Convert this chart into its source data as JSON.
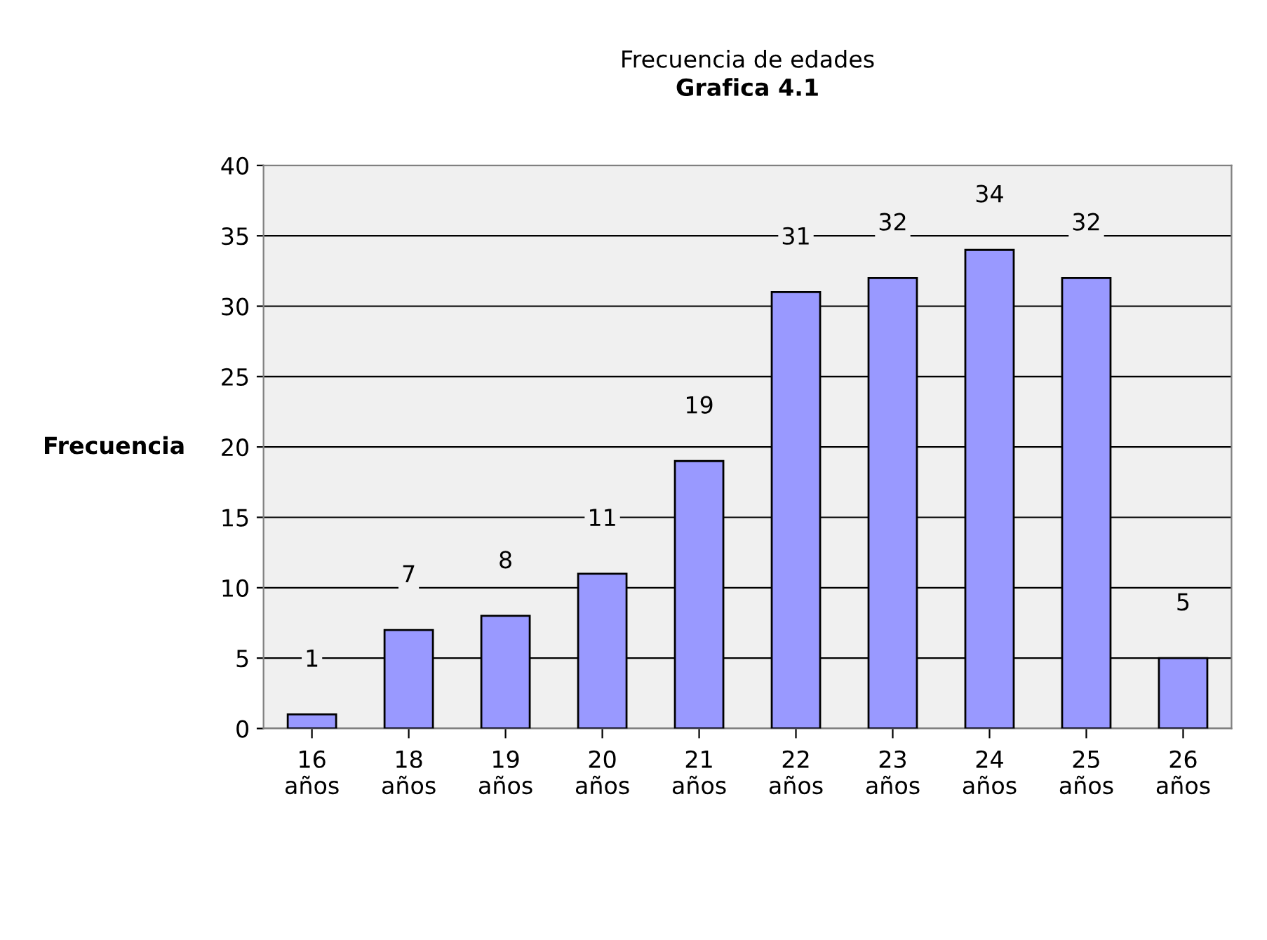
{
  "chart_data": {
    "type": "bar",
    "title": "Frecuencia de edades",
    "subtitle": "Grafica 4.1",
    "ylabel": "Frecuencia",
    "categories": [
      "16\naños",
      "18\naños",
      "19\naños",
      "20\naños",
      "21\naños",
      "22\naños",
      "23\naños",
      "24\naños",
      "25\naños",
      "26\naños"
    ],
    "values": [
      1,
      7,
      8,
      11,
      19,
      31,
      32,
      34,
      32,
      5
    ],
    "color": "#9999ff",
    "ylim": [
      0,
      40
    ],
    "yticks": [
      0,
      5,
      10,
      15,
      20,
      25,
      30,
      35,
      40
    ],
    "grid": "y",
    "data_labels": true
  }
}
